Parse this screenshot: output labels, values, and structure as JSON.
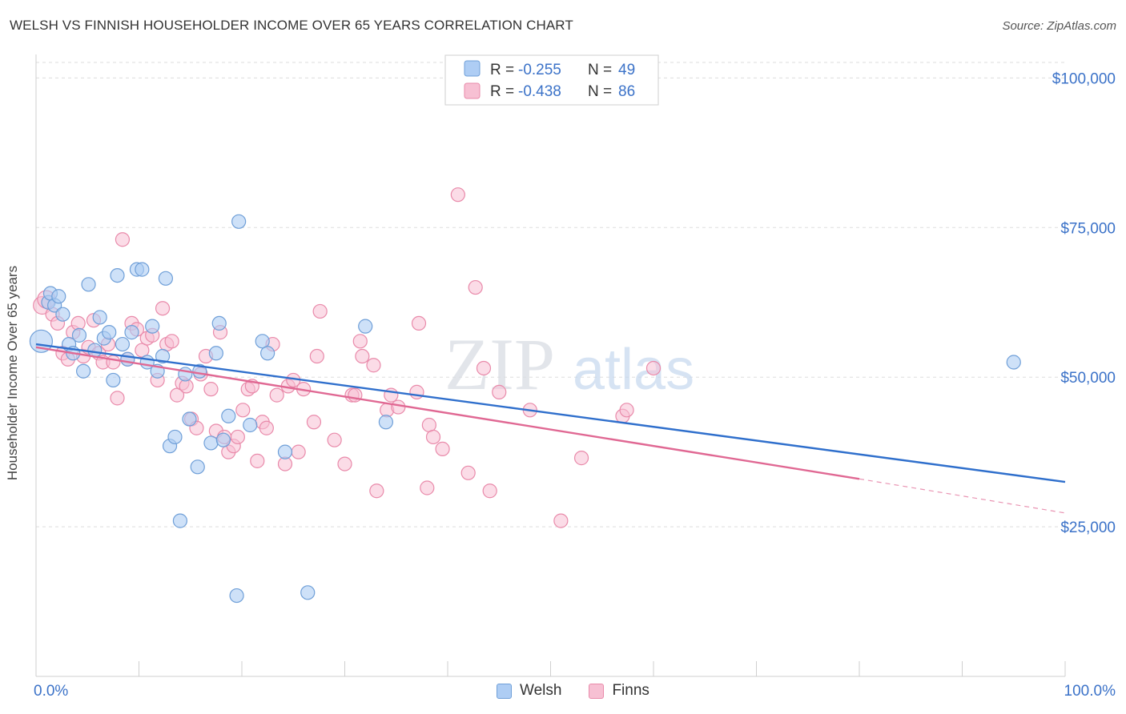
{
  "title": "WELSH VS FINNISH HOUSEHOLDER INCOME OVER 65 YEARS CORRELATION CHART",
  "source": "Source: ZipAtlas.com",
  "watermark": {
    "zip": "ZIP",
    "atlas": "atlas"
  },
  "colors": {
    "welsh_fill": "#aecdf4",
    "welsh_stroke": "#6f9fd8",
    "welsh_line": "#2f6fcc",
    "finns_fill": "#f7c0d3",
    "finns_stroke": "#e98aaa",
    "finns_line": "#e06893",
    "accent_text": "#3b72c8",
    "grid": "#dddddd"
  },
  "legend": {
    "rows": [
      {
        "r_label": "R = ",
        "r_value": "-0.255",
        "n_label": "N = ",
        "n_value": "49"
      },
      {
        "r_label": "R = ",
        "r_value": "-0.438",
        "n_label": "N = ",
        "n_value": "86"
      }
    ],
    "bottom": [
      "Welsh",
      "Finns"
    ]
  },
  "chart_data": {
    "type": "scatter",
    "xlabel": "",
    "ylabel": "Householder Income Over 65 years",
    "xlim": [
      0,
      100
    ],
    "ylim": [
      0,
      105000
    ],
    "x_tick_labels": [
      "0.0%",
      "100.0%"
    ],
    "y_ticks": [
      25000,
      50000,
      75000,
      100000
    ],
    "y_tick_labels": [
      "$25,000",
      "$50,000",
      "$75,000",
      "$100,000"
    ],
    "grid": "horizontal dashed",
    "legend_position": "top-center",
    "series": [
      {
        "name": "Welsh",
        "r": -0.255,
        "n": 49,
        "trend": {
          "x": [
            0,
            100
          ],
          "y": [
            55500,
            32500
          ]
        },
        "points": [
          [
            0.5,
            56000
          ],
          [
            1.2,
            62500
          ],
          [
            1.4,
            64000
          ],
          [
            1.8,
            62000
          ],
          [
            2.2,
            63500
          ],
          [
            2.6,
            60500
          ],
          [
            3.2,
            55500
          ],
          [
            3.6,
            54000
          ],
          [
            4.2,
            57000
          ],
          [
            4.6,
            51000
          ],
          [
            5.1,
            65500
          ],
          [
            5.7,
            54500
          ],
          [
            6.2,
            60000
          ],
          [
            6.6,
            56500
          ],
          [
            7.1,
            57500
          ],
          [
            7.5,
            49500
          ],
          [
            7.9,
            67000
          ],
          [
            8.4,
            55500
          ],
          [
            8.9,
            53000
          ],
          [
            9.3,
            57500
          ],
          [
            9.8,
            68000
          ],
          [
            10.3,
            68000
          ],
          [
            10.8,
            52500
          ],
          [
            11.3,
            58500
          ],
          [
            11.8,
            51000
          ],
          [
            12.3,
            53500
          ],
          [
            12.6,
            66500
          ],
          [
            13.0,
            38500
          ],
          [
            13.5,
            40000
          ],
          [
            14.0,
            26000
          ],
          [
            14.5,
            50500
          ],
          [
            14.9,
            43000
          ],
          [
            15.7,
            35000
          ],
          [
            15.9,
            51000
          ],
          [
            17.0,
            39000
          ],
          [
            17.5,
            54000
          ],
          [
            17.8,
            59000
          ],
          [
            18.2,
            39500
          ],
          [
            18.7,
            43500
          ],
          [
            19.5,
            13500
          ],
          [
            19.7,
            76000
          ],
          [
            20.8,
            42000
          ],
          [
            22.0,
            56000
          ],
          [
            22.5,
            54000
          ],
          [
            24.2,
            37500
          ],
          [
            26.4,
            14000
          ],
          [
            32.0,
            58500
          ],
          [
            34.0,
            42500
          ],
          [
            95.0,
            52500
          ]
        ]
      },
      {
        "name": "Finns",
        "r": -0.438,
        "n": 86,
        "trend": {
          "x": [
            0,
            80
          ],
          "y": [
            55000,
            33000
          ]
        },
        "trend_dashed": {
          "x": [
            80,
            100
          ],
          "y": [
            33000,
            27300
          ]
        },
        "points": [
          [
            0.6,
            62000
          ],
          [
            1.0,
            63000
          ],
          [
            1.6,
            60500
          ],
          [
            2.1,
            59000
          ],
          [
            2.6,
            54000
          ],
          [
            3.1,
            53000
          ],
          [
            3.6,
            57500
          ],
          [
            4.1,
            59000
          ],
          [
            4.6,
            53500
          ],
          [
            5.1,
            55000
          ],
          [
            5.6,
            59500
          ],
          [
            6.1,
            54000
          ],
          [
            6.5,
            52500
          ],
          [
            7.0,
            55500
          ],
          [
            7.5,
            52500
          ],
          [
            7.9,
            46500
          ],
          [
            8.4,
            73000
          ],
          [
            8.9,
            53000
          ],
          [
            9.3,
            59000
          ],
          [
            9.8,
            58000
          ],
          [
            10.3,
            54500
          ],
          [
            10.8,
            56500
          ],
          [
            11.3,
            57000
          ],
          [
            11.8,
            49500
          ],
          [
            12.3,
            61500
          ],
          [
            12.7,
            55500
          ],
          [
            13.2,
            56000
          ],
          [
            13.7,
            47000
          ],
          [
            14.2,
            49000
          ],
          [
            14.6,
            48500
          ],
          [
            15.1,
            43000
          ],
          [
            15.6,
            41500
          ],
          [
            16.0,
            50500
          ],
          [
            16.5,
            53500
          ],
          [
            17.0,
            48000
          ],
          [
            17.5,
            41000
          ],
          [
            17.9,
            57500
          ],
          [
            18.3,
            40000
          ],
          [
            18.7,
            37500
          ],
          [
            19.2,
            38500
          ],
          [
            19.6,
            40000
          ],
          [
            20.1,
            44500
          ],
          [
            20.6,
            48000
          ],
          [
            21.0,
            48500
          ],
          [
            21.5,
            36000
          ],
          [
            22.0,
            42500
          ],
          [
            22.4,
            41500
          ],
          [
            23.0,
            55500
          ],
          [
            23.4,
            47000
          ],
          [
            24.2,
            35500
          ],
          [
            24.5,
            48500
          ],
          [
            25.0,
            49500
          ],
          [
            25.5,
            37500
          ],
          [
            26.0,
            48000
          ],
          [
            27.0,
            42500
          ],
          [
            27.3,
            53500
          ],
          [
            27.6,
            61000
          ],
          [
            29.0,
            39500
          ],
          [
            30.0,
            35500
          ],
          [
            30.7,
            47000
          ],
          [
            31.0,
            47000
          ],
          [
            31.5,
            56000
          ],
          [
            31.7,
            53500
          ],
          [
            32.8,
            52000
          ],
          [
            33.1,
            31000
          ],
          [
            34.1,
            44500
          ],
          [
            34.5,
            47000
          ],
          [
            35.2,
            45000
          ],
          [
            37.0,
            47500
          ],
          [
            37.2,
            59000
          ],
          [
            38.0,
            31500
          ],
          [
            38.2,
            42000
          ],
          [
            38.6,
            40000
          ],
          [
            39.5,
            38000
          ],
          [
            41.0,
            80500
          ],
          [
            42.0,
            34000
          ],
          [
            42.7,
            65000
          ],
          [
            43.5,
            51500
          ],
          [
            44.1,
            31000
          ],
          [
            45.0,
            47500
          ],
          [
            48.0,
            44500
          ],
          [
            51.0,
            26000
          ],
          [
            53.0,
            36500
          ],
          [
            57.0,
            43500
          ],
          [
            57.4,
            44500
          ],
          [
            60.0,
            51500
          ]
        ]
      }
    ]
  }
}
